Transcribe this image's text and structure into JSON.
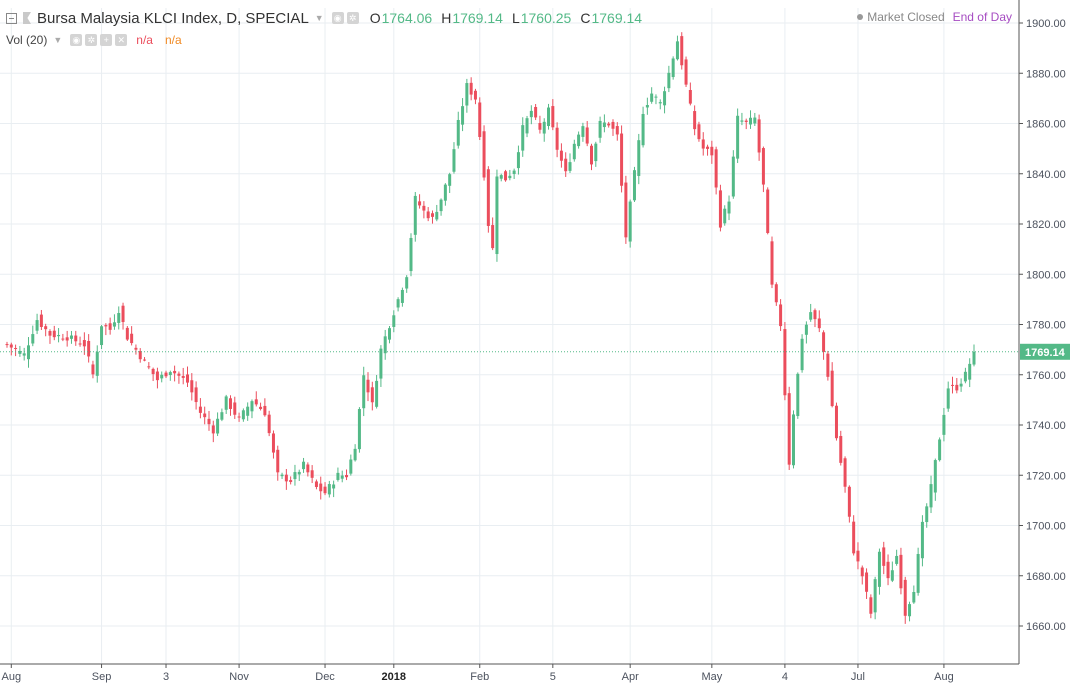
{
  "header": {
    "title": "Bursa Malaysia KLCI Index, D, SPECIAL",
    "ohlc": [
      {
        "key": "O",
        "value": "1764.06"
      },
      {
        "key": "H",
        "value": "1769.14"
      },
      {
        "key": "L",
        "value": "1760.25"
      },
      {
        "key": "C",
        "value": "1769.14"
      }
    ],
    "volume_label": "Vol (20)",
    "volume_value_1": "n/a",
    "volume_value_2": "n/a",
    "market_status": "Market Closed",
    "data_mode": "End of Day",
    "icons": [
      "collapse-icon",
      "flag-icon",
      "settings-icon",
      "eye-icon",
      "plus-icon",
      "close-icon"
    ]
  },
  "colors": {
    "up": "#53b987",
    "down": "#eb4d5c",
    "grid": "#e9eef2",
    "axis_text": "#4c525e",
    "last_price": "#53b987"
  },
  "chart_data": {
    "type": "candlestick",
    "y_axis": {
      "min": 1650,
      "max": 1905,
      "ticks": [
        "1660.00",
        "1680.00",
        "1700.00",
        "1720.00",
        "1740.00",
        "1760.00",
        "1780.00",
        "1800.00",
        "1820.00",
        "1840.00",
        "1860.00",
        "1880.00",
        "1900.00"
      ]
    },
    "x_axis_labels": [
      {
        "label": "Aug",
        "index": 1,
        "bold": false
      },
      {
        "label": "Sep",
        "index": 22,
        "bold": false
      },
      {
        "label": "3",
        "index": 37,
        "bold": false
      },
      {
        "label": "Nov",
        "index": 54,
        "bold": false
      },
      {
        "label": "Dec",
        "index": 74,
        "bold": false
      },
      {
        "label": "2018",
        "index": 90,
        "bold": true
      },
      {
        "label": "Feb",
        "index": 110,
        "bold": false
      },
      {
        "label": "5",
        "index": 127,
        "bold": false
      },
      {
        "label": "Apr",
        "index": 145,
        "bold": false
      },
      {
        "label": "May",
        "index": 164,
        "bold": false
      },
      {
        "label": "4",
        "index": 181,
        "bold": false
      },
      {
        "label": "Jul",
        "index": 198,
        "bold": false
      },
      {
        "label": "Aug",
        "index": 218,
        "bold": false
      }
    ],
    "last_price": "1769.14",
    "keypoints": [
      [
        0,
        1772
      ],
      [
        4,
        1768
      ],
      [
        7,
        1782
      ],
      [
        10,
        1776
      ],
      [
        14,
        1775
      ],
      [
        18,
        1772
      ],
      [
        20,
        1760
      ],
      [
        22,
        1780
      ],
      [
        24,
        1778
      ],
      [
        26,
        1786
      ],
      [
        28,
        1775
      ],
      [
        32,
        1765
      ],
      [
        35,
        1758
      ],
      [
        38,
        1762
      ],
      [
        42,
        1757
      ],
      [
        45,
        1745
      ],
      [
        48,
        1738
      ],
      [
        51,
        1750
      ],
      [
        54,
        1742
      ],
      [
        57,
        1750
      ],
      [
        60,
        1745
      ],
      [
        63,
        1720
      ],
      [
        66,
        1718
      ],
      [
        69,
        1724
      ],
      [
        72,
        1715
      ],
      [
        74,
        1713
      ],
      [
        77,
        1720
      ],
      [
        79,
        1720
      ],
      [
        81,
        1732
      ],
      [
        83,
        1760
      ],
      [
        85,
        1748
      ],
      [
        87,
        1770
      ],
      [
        90,
        1785
      ],
      [
        93,
        1800
      ],
      [
        95,
        1830
      ],
      [
        97,
        1825
      ],
      [
        99,
        1822
      ],
      [
        101,
        1830
      ],
      [
        103,
        1840
      ],
      [
        105,
        1860
      ],
      [
        107,
        1875
      ],
      [
        109,
        1870
      ],
      [
        111,
        1840
      ],
      [
        112,
        1820
      ],
      [
        113,
        1810
      ],
      [
        114,
        1840
      ],
      [
        116,
        1838
      ],
      [
        118,
        1842
      ],
      [
        120,
        1858
      ],
      [
        122,
        1865
      ],
      [
        124,
        1857
      ],
      [
        126,
        1865
      ],
      [
        128,
        1850
      ],
      [
        130,
        1840
      ],
      [
        132,
        1852
      ],
      [
        134,
        1860
      ],
      [
        136,
        1845
      ],
      [
        138,
        1860
      ],
      [
        140,
        1860
      ],
      [
        142,
        1855
      ],
      [
        144,
        1815
      ],
      [
        146,
        1840
      ],
      [
        148,
        1865
      ],
      [
        150,
        1872
      ],
      [
        152,
        1868
      ],
      [
        154,
        1880
      ],
      [
        156,
        1893
      ],
      [
        158,
        1875
      ],
      [
        160,
        1858
      ],
      [
        162,
        1850
      ],
      [
        164,
        1848
      ],
      [
        166,
        1820
      ],
      [
        168,
        1830
      ],
      [
        170,
        1862
      ],
      [
        172,
        1860
      ],
      [
        174,
        1862
      ],
      [
        176,
        1835
      ],
      [
        178,
        1795
      ],
      [
        180,
        1780
      ],
      [
        182,
        1725
      ],
      [
        183,
        1745
      ],
      [
        185,
        1775
      ],
      [
        187,
        1785
      ],
      [
        189,
        1778
      ],
      [
        191,
        1760
      ],
      [
        193,
        1735
      ],
      [
        195,
        1715
      ],
      [
        197,
        1690
      ],
      [
        199,
        1680
      ],
      [
        201,
        1665
      ],
      [
        203,
        1690
      ],
      [
        205,
        1678
      ],
      [
        207,
        1688
      ],
      [
        209,
        1665
      ],
      [
        211,
        1675
      ],
      [
        213,
        1700
      ],
      [
        215,
        1715
      ],
      [
        217,
        1735
      ],
      [
        219,
        1755
      ],
      [
        221,
        1755
      ],
      [
        223,
        1760
      ],
      [
        225,
        1769.14
      ]
    ],
    "candle_count": 226
  }
}
